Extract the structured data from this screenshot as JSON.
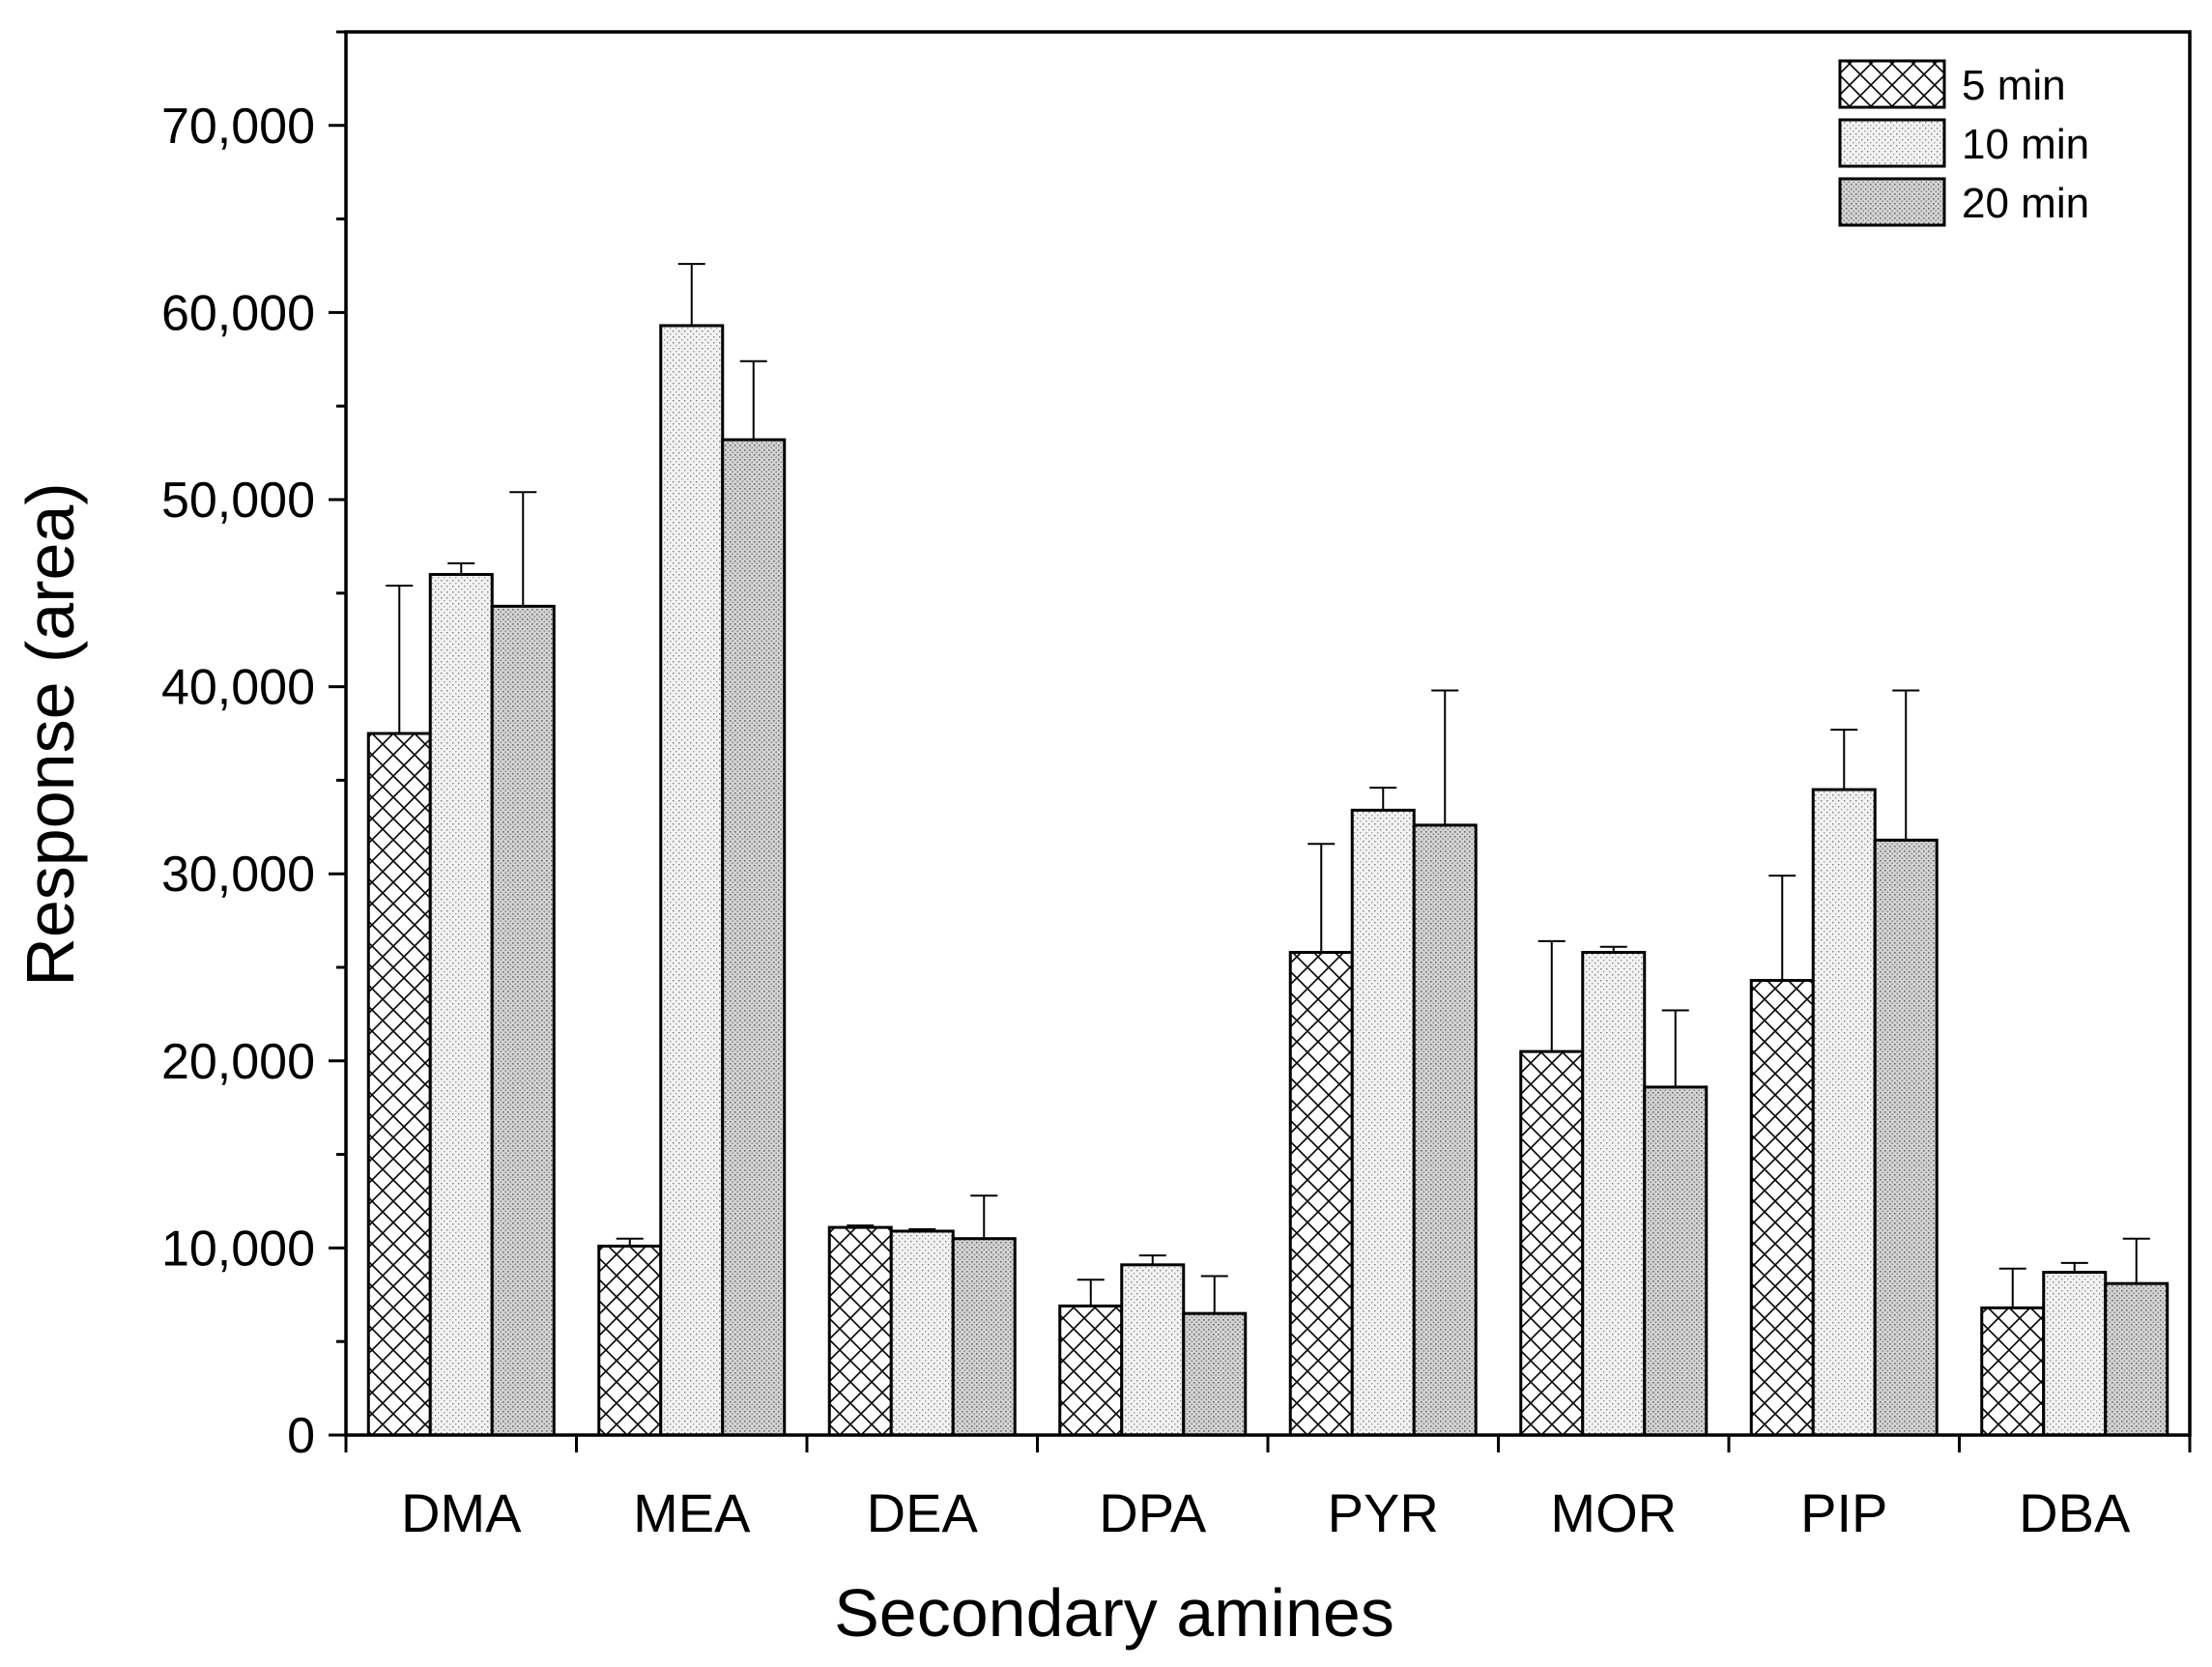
{
  "chart_data": {
    "type": "bar",
    "title": "",
    "xlabel": "Secondary amines",
    "ylabel": "Response (area)",
    "ylim": [
      0,
      75000
    ],
    "yticks": [
      {
        "value": 0,
        "label": "0"
      },
      {
        "value": 10000,
        "label": "10,000"
      },
      {
        "value": 20000,
        "label": "20,000"
      },
      {
        "value": 30000,
        "label": "30,000"
      },
      {
        "value": 40000,
        "label": "40,000"
      },
      {
        "value": 50000,
        "label": "50,000"
      },
      {
        "value": 60000,
        "label": "60,000"
      },
      {
        "value": 70000,
        "label": "70,000"
      }
    ],
    "categories": [
      "DMA",
      "MEA",
      "DEA",
      "DPA",
      "PYR",
      "MOR",
      "PIP",
      "DBA"
    ],
    "series": [
      {
        "name": "5 min",
        "pattern": "crosshatch",
        "values": [
          37500,
          10100,
          11100,
          6900,
          25800,
          20500,
          24300,
          6800
        ],
        "errors": [
          7900,
          400,
          100,
          1400,
          5800,
          5900,
          5600,
          2100
        ]
      },
      {
        "name": "10 min",
        "pattern": "dots-light",
        "values": [
          46000,
          59300,
          10900,
          9100,
          33400,
          25800,
          34500,
          8700
        ],
        "errors": [
          600,
          3300,
          100,
          500,
          1200,
          300,
          3200,
          500
        ]
      },
      {
        "name": "20 min",
        "pattern": "dots-dense",
        "values": [
          44300,
          53200,
          10500,
          6500,
          32600,
          18600,
          31800,
          8100
        ],
        "errors": [
          6100,
          4200,
          2300,
          2000,
          7200,
          4100,
          8000,
          2400
        ]
      }
    ],
    "legend": {
      "position": "top-right"
    },
    "grid": false
  }
}
